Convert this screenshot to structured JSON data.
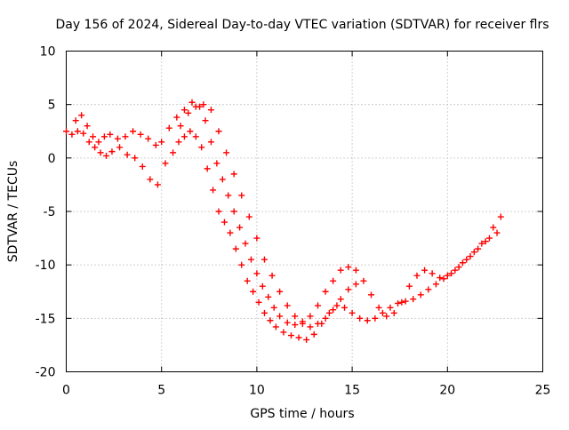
{
  "chart_data": {
    "type": "scatter",
    "title": "Day 156 of 2024, Sidereal Day-to-day VTEC variation (SDTVAR) for receiver flrs",
    "xlabel": "GPS time / hours",
    "ylabel": "SDTVAR / TECUs",
    "xlim": [
      0,
      25
    ],
    "ylim": [
      -20,
      10
    ],
    "xticks": [
      0,
      5,
      10,
      15,
      20,
      25
    ],
    "yticks": [
      -20,
      -15,
      -10,
      -5,
      0,
      5,
      10
    ],
    "grid": true,
    "legend": "none",
    "marker": "+",
    "color": "#ff0000",
    "series": [
      {
        "x": [
          0,
          0.3,
          0.6,
          0.9,
          1.2,
          1.5,
          1.8,
          2.1,
          2.4,
          2.8,
          3.2,
          3.6,
          4.0,
          4.4,
          4.8,
          5.2,
          5.6,
          5.9,
          6.2,
          6.5,
          6.8,
          7.1,
          7.4,
          7.7,
          8.0,
          8.3,
          8.6,
          8.9,
          9.2,
          9.5,
          9.8,
          10.1,
          10.4,
          10.7,
          11.0,
          11.4,
          11.8,
          12.2,
          12.6,
          13.0,
          13.4,
          13.8,
          14.2,
          14.6,
          15.0,
          15.4,
          15.8,
          16.2,
          16.6,
          17.0,
          17.4,
          17.8,
          18.2,
          18.6,
          19.0,
          19.4,
          19.8,
          20.2,
          20.6,
          21.0,
          21.4,
          21.8,
          22.2,
          22.6
        ],
        "y": [
          2.5,
          2.2,
          2.5,
          2.3,
          1.5,
          1.0,
          0.5,
          0.2,
          0.6,
          1.0,
          0.3,
          0.0,
          -0.8,
          -2.0,
          -2.5,
          -0.5,
          0.5,
          1.5,
          2.0,
          2.5,
          2.0,
          1.0,
          -1.0,
          -3.0,
          -5.0,
          -6.0,
          -7.0,
          -8.5,
          -10.0,
          -11.5,
          -12.5,
          -13.5,
          -14.5,
          -15.2,
          -15.8,
          -16.3,
          -16.6,
          -16.8,
          -17.0,
          -16.5,
          -15.5,
          -14.5,
          -13.8,
          -14.0,
          -14.5,
          -15.0,
          -15.2,
          -15.0,
          -14.5,
          -14.0,
          -13.6,
          -13.4,
          -13.2,
          -12.8,
          -12.3,
          -11.8,
          -11.3,
          -10.8,
          -10.2,
          -9.5,
          -8.8,
          -8.0,
          -7.5,
          -7.0
        ]
      },
      {
        "x": [
          0.5,
          0.8,
          1.1,
          1.4,
          1.7,
          2.0,
          2.3,
          2.7,
          3.1,
          3.5,
          3.9,
          4.3,
          4.7,
          5.0,
          5.4,
          5.8,
          6.2,
          6.6,
          7.0,
          7.3,
          7.6,
          7.9,
          8.2,
          8.5,
          8.8,
          9.1,
          9.4,
          9.7,
          10.0,
          10.3,
          10.6,
          10.9,
          11.2,
          11.6,
          12.0,
          12.4,
          12.8,
          13.2,
          13.6,
          14.0,
          14.4,
          14.8,
          15.2,
          15.6,
          16.0,
          16.4,
          16.8,
          17.2,
          17.6,
          18.0,
          18.4,
          18.8,
          19.2,
          19.6,
          20.0,
          20.4,
          20.8,
          21.2,
          21.6,
          22.0,
          22.4,
          22.8
        ],
        "y": [
          3.5,
          4.0,
          3.0,
          2.0,
          1.5,
          2.0,
          2.2,
          1.8,
          2.0,
          2.5,
          2.2,
          1.8,
          1.2,
          1.5,
          2.8,
          3.8,
          4.5,
          5.2,
          4.8,
          3.5,
          1.5,
          -0.5,
          -2.0,
          -3.5,
          -5.0,
          -6.5,
          -8.0,
          -9.5,
          -10.8,
          -12.0,
          -13.0,
          -14.0,
          -14.8,
          -15.4,
          -15.6,
          -15.3,
          -14.8,
          -13.8,
          -12.5,
          -11.5,
          -10.5,
          -10.2,
          -10.5,
          -11.5,
          -12.8,
          -14.0,
          -14.8,
          -14.5,
          -13.5,
          -12.0,
          -11.0,
          -10.5,
          -10.8,
          -11.2,
          -11.0,
          -10.5,
          -9.8,
          -9.2,
          -8.5,
          -7.8,
          -6.5,
          -5.5
        ]
      },
      {
        "x": [
          6.0,
          6.4,
          6.8,
          7.2,
          7.6,
          8.0,
          8.4,
          8.8,
          9.2,
          9.6,
          10.0,
          10.4,
          10.8,
          11.2,
          11.6,
          12.0,
          12.4,
          12.8,
          13.2,
          13.6,
          14.0,
          14.4,
          14.8,
          15.2
        ],
        "y": [
          3.0,
          4.2,
          4.8,
          5.0,
          4.5,
          2.5,
          0.5,
          -1.5,
          -3.5,
          -5.5,
          -7.5,
          -9.5,
          -11.0,
          -12.5,
          -13.8,
          -14.8,
          -15.5,
          -15.8,
          -15.5,
          -15.0,
          -14.2,
          -13.2,
          -12.3,
          -11.8
        ]
      }
    ]
  }
}
